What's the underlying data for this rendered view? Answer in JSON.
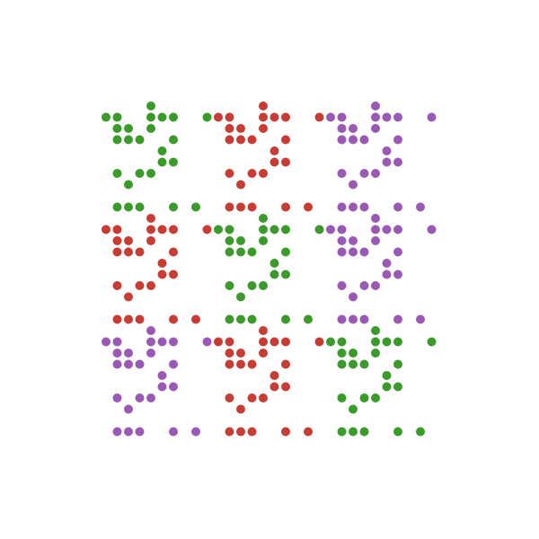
{
  "colors": {
    "background": "#ffffff",
    "green": "#3a9a2a",
    "red": "#c83c33",
    "purple": "#9b59b6"
  },
  "tiles": {
    "layout_colors": [
      [
        "green",
        "red",
        "purple"
      ],
      [
        "red",
        "green",
        "purple"
      ],
      [
        "purple",
        "red",
        "green"
      ]
    ],
    "pattern_rows": [
      "....#....",
      "##..###..#",
      ".##.#..",
      ".###..#.",
      ".....#...",
      ".....##.",
      ".#.##.",
      "..#.",
      "..",
      ".###..#.#"
    ]
  }
}
